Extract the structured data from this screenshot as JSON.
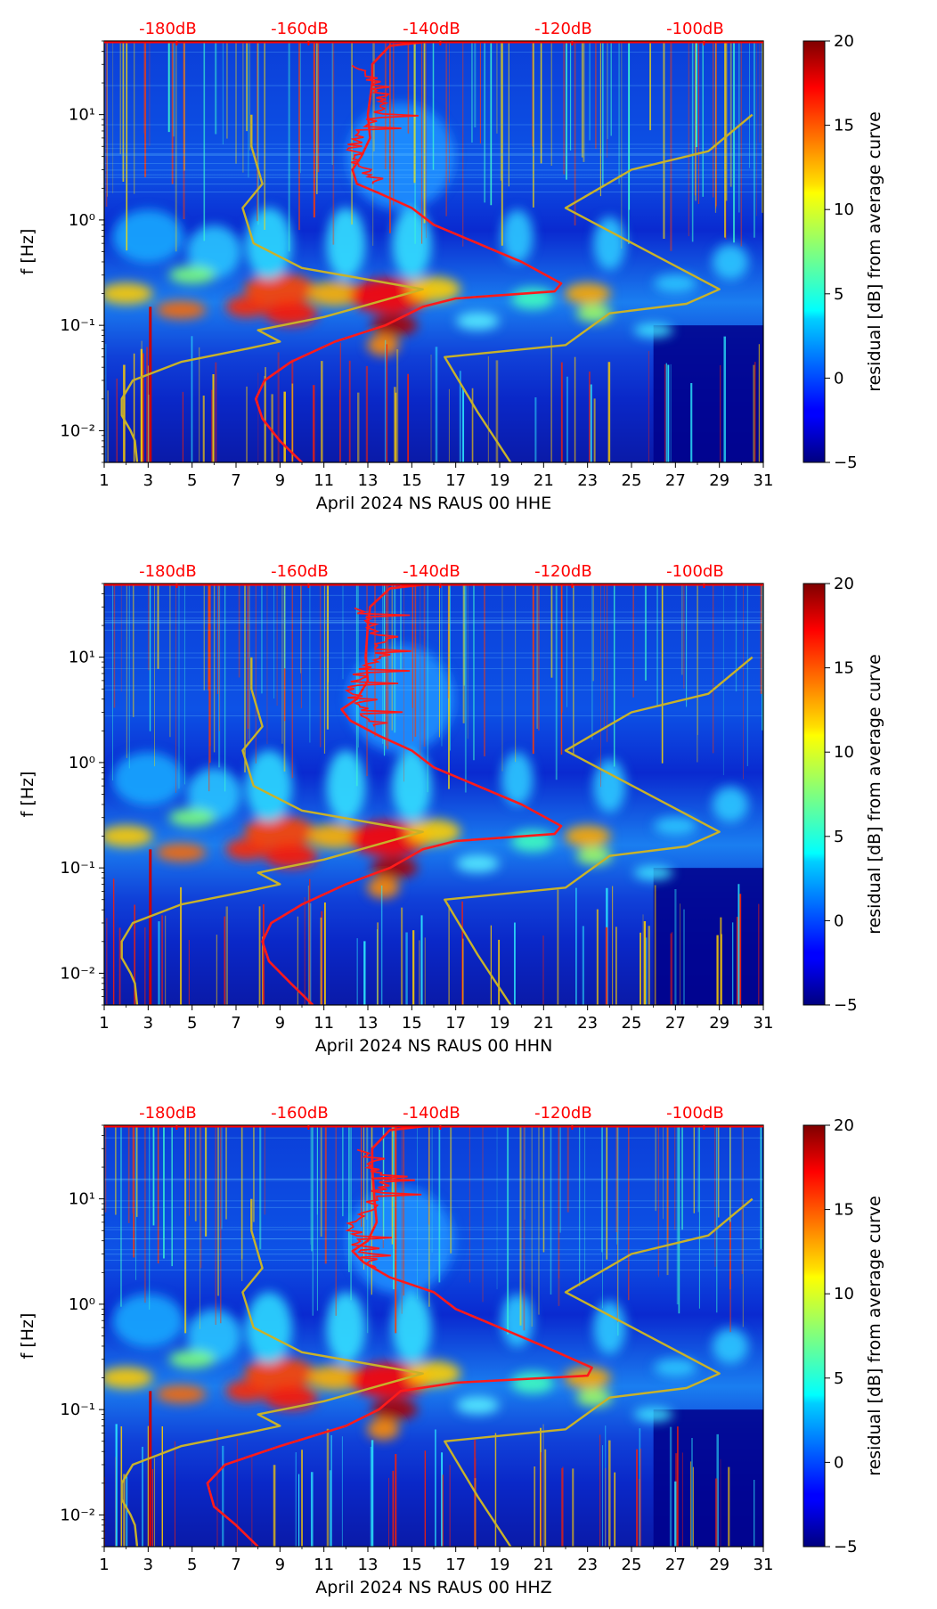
{
  "figure": {
    "colors": {
      "top_axis_text": "#ff0000",
      "psd_curve": "#ff1a1a",
      "noise_model": "#c8b22a",
      "background": "#00008b"
    }
  },
  "chart_data": [
    {
      "type": "heatmap",
      "title": "",
      "xlabel": "April 2024 NS RAUS 00 HHE",
      "ylabel": "f [Hz]",
      "x_ticks": [
        "1",
        "3",
        "5",
        "7",
        "9",
        "11",
        "13",
        "15",
        "17",
        "19",
        "21",
        "23",
        "25",
        "27",
        "29",
        "31"
      ],
      "xlim": [
        1,
        31
      ],
      "ylim_log": [
        0.005,
        50
      ],
      "y_ticks": [
        {
          "value": 0.01,
          "label": "10⁻²"
        },
        {
          "value": 0.1,
          "label": "10⁻¹"
        },
        {
          "value": 1,
          "label": "10⁰"
        },
        {
          "value": 10,
          "label": "10¹"
        }
      ],
      "top_axis_labels": [
        {
          "day": 4.3,
          "label": "-180dB"
        },
        {
          "day": 10.3,
          "label": "-160dB"
        },
        {
          "day": 16.3,
          "label": "-140dB"
        },
        {
          "day": 22.3,
          "label": "-120dB"
        },
        {
          "day": 28.3,
          "label": "-100dB"
        }
      ],
      "colorbar": {
        "label": "residual [dB] from average curve",
        "min": -5,
        "max": 20,
        "ticks": [
          -5,
          0,
          5,
          10,
          15,
          20
        ]
      },
      "psd_curve": {
        "name": "average PSD",
        "points": [
          [
            10,
            0.005
          ],
          [
            9,
            0.008
          ],
          [
            8.2,
            0.013
          ],
          [
            7.9,
            0.02
          ],
          [
            8.3,
            0.03
          ],
          [
            9.5,
            0.045
          ],
          [
            11.5,
            0.07
          ],
          [
            13.8,
            0.1
          ],
          [
            15.5,
            0.15
          ],
          [
            17,
            0.18
          ],
          [
            21.5,
            0.21
          ],
          [
            21.8,
            0.25
          ],
          [
            20,
            0.4
          ],
          [
            18,
            0.6
          ],
          [
            16,
            0.9
          ],
          [
            15,
            1.3
          ],
          [
            13.5,
            1.8
          ],
          [
            12.5,
            2.2
          ],
          [
            12.3,
            3
          ],
          [
            12.7,
            4
          ],
          [
            13.1,
            6
          ],
          [
            13,
            10
          ],
          [
            13.2,
            20
          ],
          [
            13.2,
            30
          ],
          [
            14,
            45
          ],
          [
            16,
            50
          ],
          [
            31,
            50
          ]
        ]
      },
      "noise_model": {
        "name": "station noise model",
        "low": [
          [
            2.5,
            0.005
          ],
          [
            2.4,
            0.008
          ],
          [
            2.2,
            0.01
          ],
          [
            1.8,
            0.014
          ],
          [
            1.8,
            0.02
          ],
          [
            2.3,
            0.03
          ],
          [
            4.5,
            0.045
          ],
          [
            7.5,
            0.06
          ],
          [
            9,
            0.07
          ],
          [
            8,
            0.09
          ],
          [
            11,
            0.12
          ],
          [
            15.5,
            0.22
          ],
          [
            10,
            0.35
          ],
          [
            7.8,
            0.6
          ],
          [
            7.3,
            1.3
          ],
          [
            8.2,
            2.2
          ],
          [
            7.7,
            5
          ],
          [
            7.7,
            10
          ]
        ],
        "high": [
          [
            19.5,
            0.005
          ],
          [
            18,
            0.015
          ],
          [
            16.5,
            0.05
          ],
          [
            22,
            0.065
          ],
          [
            24,
            0.13
          ],
          [
            27.5,
            0.16
          ],
          [
            29,
            0.22
          ],
          [
            22,
            1.3
          ],
          [
            25,
            3
          ],
          [
            28.5,
            4.5
          ],
          [
            30.5,
            10
          ]
        ]
      }
    },
    {
      "type": "heatmap",
      "title": "",
      "xlabel": "April 2024 NS RAUS 00 HHN",
      "ylabel": "f [Hz]",
      "x_ticks": [
        "1",
        "3",
        "5",
        "7",
        "9",
        "11",
        "13",
        "15",
        "17",
        "19",
        "21",
        "23",
        "25",
        "27",
        "29",
        "31"
      ],
      "xlim": [
        1,
        31
      ],
      "ylim_log": [
        0.005,
        50
      ],
      "y_ticks": [
        {
          "value": 0.01,
          "label": "10⁻²"
        },
        {
          "value": 0.1,
          "label": "10⁻¹"
        },
        {
          "value": 1,
          "label": "10⁰"
        },
        {
          "value": 10,
          "label": "10¹"
        }
      ],
      "top_axis_labels": [
        {
          "day": 4.3,
          "label": "-180dB"
        },
        {
          "day": 10.3,
          "label": "-160dB"
        },
        {
          "day": 16.3,
          "label": "-140dB"
        },
        {
          "day": 22.3,
          "label": "-120dB"
        },
        {
          "day": 28.3,
          "label": "-100dB"
        }
      ],
      "colorbar": {
        "label": "residual [dB] from average curve",
        "min": -5,
        "max": 20,
        "ticks": [
          -5,
          0,
          5,
          10,
          15,
          20
        ]
      },
      "psd_curve": {
        "name": "average PSD",
        "points": [
          [
            10.5,
            0.005
          ],
          [
            9.5,
            0.008
          ],
          [
            8.5,
            0.013
          ],
          [
            8.2,
            0.02
          ],
          [
            8.6,
            0.03
          ],
          [
            10,
            0.045
          ],
          [
            12,
            0.07
          ],
          [
            14,
            0.1
          ],
          [
            15.5,
            0.15
          ],
          [
            17,
            0.18
          ],
          [
            21.5,
            0.21
          ],
          [
            21.8,
            0.25
          ],
          [
            20,
            0.4
          ],
          [
            18,
            0.6
          ],
          [
            16,
            0.9
          ],
          [
            15,
            1.3
          ],
          [
            13.5,
            1.8
          ],
          [
            12.2,
            2.5
          ],
          [
            11.8,
            3.2
          ],
          [
            12.5,
            4
          ],
          [
            13,
            6
          ],
          [
            12.9,
            10
          ],
          [
            13,
            20
          ],
          [
            13.1,
            30
          ],
          [
            14,
            45
          ],
          [
            16,
            50
          ],
          [
            31,
            50
          ]
        ]
      },
      "noise_model": {
        "name": "station noise model",
        "low": [
          [
            2.5,
            0.005
          ],
          [
            2.4,
            0.008
          ],
          [
            2.2,
            0.01
          ],
          [
            1.8,
            0.014
          ],
          [
            1.8,
            0.02
          ],
          [
            2.3,
            0.03
          ],
          [
            4.5,
            0.045
          ],
          [
            7.5,
            0.06
          ],
          [
            9,
            0.07
          ],
          [
            8,
            0.09
          ],
          [
            11,
            0.12
          ],
          [
            15.5,
            0.22
          ],
          [
            10,
            0.35
          ],
          [
            7.8,
            0.6
          ],
          [
            7.3,
            1.3
          ],
          [
            8.2,
            2.2
          ],
          [
            7.7,
            5
          ],
          [
            7.7,
            10
          ]
        ],
        "high": [
          [
            19.5,
            0.005
          ],
          [
            18,
            0.015
          ],
          [
            16.5,
            0.05
          ],
          [
            22,
            0.065
          ],
          [
            24,
            0.13
          ],
          [
            27.5,
            0.16
          ],
          [
            29,
            0.22
          ],
          [
            22,
            1.3
          ],
          [
            25,
            3
          ],
          [
            28.5,
            4.5
          ],
          [
            30.5,
            10
          ]
        ]
      }
    },
    {
      "type": "heatmap",
      "title": "",
      "xlabel": "April 2024 NS RAUS 00 HHZ",
      "ylabel": "f [Hz]",
      "x_ticks": [
        "1",
        "3",
        "5",
        "7",
        "9",
        "11",
        "13",
        "15",
        "17",
        "19",
        "21",
        "23",
        "25",
        "27",
        "29",
        "31"
      ],
      "xlim": [
        1,
        31
      ],
      "ylim_log": [
        0.005,
        50
      ],
      "y_ticks": [
        {
          "value": 0.01,
          "label": "10⁻²"
        },
        {
          "value": 0.1,
          "label": "10⁻¹"
        },
        {
          "value": 1,
          "label": "10⁰"
        },
        {
          "value": 10,
          "label": "10¹"
        }
      ],
      "top_axis_labels": [
        {
          "day": 4.3,
          "label": "-180dB"
        },
        {
          "day": 10.3,
          "label": "-160dB"
        },
        {
          "day": 16.3,
          "label": "-140dB"
        },
        {
          "day": 22.3,
          "label": "-120dB"
        },
        {
          "day": 28.3,
          "label": "-100dB"
        }
      ],
      "colorbar": {
        "label": "residual [dB] from average curve",
        "min": -5,
        "max": 20,
        "ticks": [
          -5,
          0,
          5,
          10,
          15,
          20
        ]
      },
      "psd_curve": {
        "name": "average PSD",
        "points": [
          [
            8,
            0.005
          ],
          [
            7,
            0.008
          ],
          [
            6,
            0.012
          ],
          [
            5.7,
            0.02
          ],
          [
            6.5,
            0.03
          ],
          [
            9,
            0.045
          ],
          [
            12,
            0.07
          ],
          [
            13.5,
            0.1
          ],
          [
            14.5,
            0.15
          ],
          [
            17,
            0.18
          ],
          [
            23,
            0.21
          ],
          [
            23.2,
            0.25
          ],
          [
            21,
            0.4
          ],
          [
            19,
            0.6
          ],
          [
            17,
            0.9
          ],
          [
            16,
            1.3
          ],
          [
            14,
            1.8
          ],
          [
            12.8,
            2.5
          ],
          [
            12.3,
            3.2
          ],
          [
            13,
            4
          ],
          [
            13.4,
            6
          ],
          [
            13.3,
            10
          ],
          [
            13.2,
            20
          ],
          [
            13.2,
            30
          ],
          [
            14,
            45
          ],
          [
            16,
            50
          ],
          [
            31,
            50
          ]
        ]
      },
      "noise_model": {
        "name": "station noise model",
        "low": [
          [
            2.5,
            0.005
          ],
          [
            2.4,
            0.008
          ],
          [
            2.2,
            0.01
          ],
          [
            1.8,
            0.014
          ],
          [
            1.8,
            0.02
          ],
          [
            2.3,
            0.03
          ],
          [
            4.5,
            0.045
          ],
          [
            7.5,
            0.06
          ],
          [
            9,
            0.07
          ],
          [
            8,
            0.09
          ],
          [
            11,
            0.12
          ],
          [
            15.5,
            0.22
          ],
          [
            10,
            0.35
          ],
          [
            7.8,
            0.6
          ],
          [
            7.3,
            1.3
          ],
          [
            8.2,
            2.2
          ],
          [
            7.7,
            5
          ],
          [
            7.7,
            10
          ]
        ],
        "high": [
          [
            19.5,
            0.005
          ],
          [
            18,
            0.015
          ],
          [
            16.5,
            0.05
          ],
          [
            22,
            0.065
          ],
          [
            24,
            0.13
          ],
          [
            27.5,
            0.16
          ],
          [
            29,
            0.22
          ],
          [
            22,
            1.3
          ],
          [
            25,
            3
          ],
          [
            28.5,
            4.5
          ],
          [
            30.5,
            10
          ]
        ]
      }
    }
  ]
}
